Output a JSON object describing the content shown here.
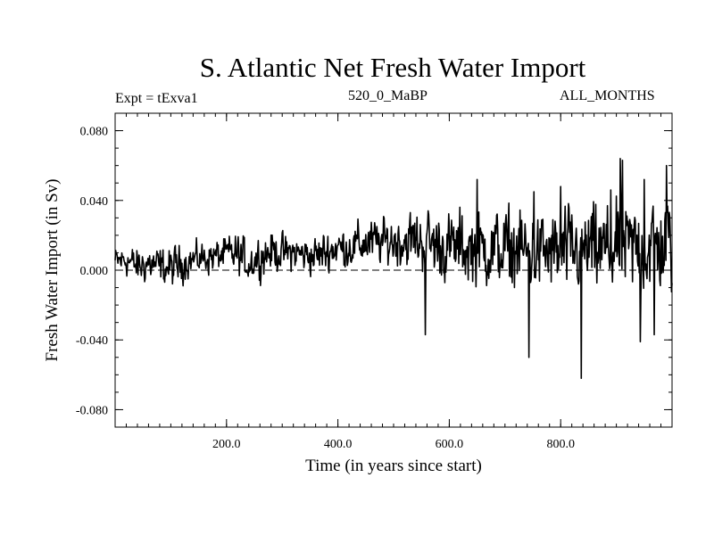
{
  "header": {
    "title": "S. Atlantic Net Fresh Water Import",
    "experiment": "Expt = tExva1",
    "run_id": "520_0_MaBP",
    "months": "ALL_MONTHS"
  },
  "chart_data": {
    "type": "line",
    "title": "S. Atlantic Net Fresh Water Import",
    "xlabel": "Time (in years since start)",
    "ylabel": "Fresh Water Import (in Sv)",
    "xlim": [
      0,
      1000
    ],
    "ylim": [
      -0.09,
      0.09
    ],
    "x_ticks": [
      200,
      400,
      600,
      800
    ],
    "x_tick_labels": [
      "200.0",
      "400.0",
      "600.0",
      "800.0"
    ],
    "y_ticks": [
      -0.08,
      -0.04,
      0.0,
      0.04,
      0.08
    ],
    "y_tick_labels": [
      "-0.080",
      "-0.040",
      "0.000",
      "0.040",
      "0.080"
    ],
    "zero_line": {
      "y": 0.0,
      "style": "dashed"
    },
    "series": [
      {
        "name": "fresh water import",
        "x": [
          0,
          20,
          40,
          60,
          80,
          100,
          120,
          140,
          160,
          180,
          200,
          220,
          240,
          260,
          280,
          300,
          320,
          340,
          360,
          380,
          400,
          420,
          440,
          460,
          480,
          500,
          520,
          540,
          560,
          580,
          600,
          620,
          640,
          660,
          680,
          700,
          720,
          740,
          760,
          780,
          800,
          820,
          840,
          860,
          880,
          900,
          920,
          940,
          960,
          980,
          1000
        ],
        "values": [
          0.005,
          0.006,
          0.002,
          0.004,
          0.002,
          0.001,
          0.004,
          0.006,
          0.007,
          0.008,
          0.009,
          0.009,
          0.004,
          0.008,
          0.011,
          0.01,
          0.01,
          0.009,
          0.008,
          0.011,
          0.013,
          0.013,
          0.015,
          0.016,
          0.016,
          0.017,
          0.017,
          0.017,
          0.016,
          0.014,
          0.013,
          0.013,
          0.012,
          0.012,
          0.012,
          0.012,
          0.012,
          0.01,
          0.01,
          0.01,
          0.01,
          0.011,
          0.011,
          0.011,
          0.011,
          0.012,
          0.012,
          0.013,
          0.013,
          0.014,
          0.014
        ],
        "spread": [
          0.006,
          0.007,
          0.008,
          0.008,
          0.008,
          0.009,
          0.008,
          0.007,
          0.007,
          0.007,
          0.008,
          0.009,
          0.009,
          0.009,
          0.009,
          0.008,
          0.008,
          0.008,
          0.009,
          0.009,
          0.009,
          0.009,
          0.01,
          0.01,
          0.01,
          0.011,
          0.012,
          0.013,
          0.014,
          0.015,
          0.015,
          0.016,
          0.016,
          0.016,
          0.017,
          0.017,
          0.018,
          0.018,
          0.018,
          0.018,
          0.019,
          0.019,
          0.019,
          0.02,
          0.02,
          0.021,
          0.021,
          0.022,
          0.022,
          0.022,
          0.022
        ],
        "extremes": [
          [
            557,
            -0.037
          ],
          [
            564,
            0.024
          ],
          [
            650,
            0.052
          ],
          [
            743,
            -0.05
          ],
          [
            752,
            0.045
          ],
          [
            800,
            0.048
          ],
          [
            837,
            -0.062
          ],
          [
            890,
            0.046
          ],
          [
            907,
            0.064
          ],
          [
            911,
            0.063
          ],
          [
            943,
            -0.041
          ],
          [
            950,
            0.052
          ],
          [
            968,
            -0.037
          ],
          [
            990,
            0.06
          ]
        ]
      }
    ]
  }
}
